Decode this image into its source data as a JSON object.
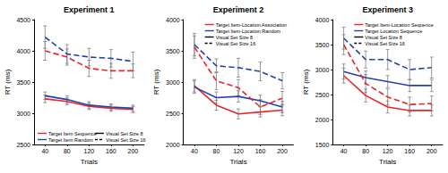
{
  "chart_data": [
    {
      "type": "line",
      "title": "Experiment 1",
      "x_label": "Trials",
      "y_label": "RT (ms)",
      "categories": [
        "40",
        "80",
        "120",
        "160",
        "200"
      ],
      "ylim": [
        2500,
        4500
      ],
      "yticks": [
        2500,
        3000,
        3500,
        4000,
        4500
      ],
      "grid": false,
      "legend": "bottom",
      "series": [
        {
          "name": "Target Item Sequence",
          "group": "Visual Set Size 8",
          "color": "#e8262a",
          "line_style": "solid",
          "values": [
            3230,
            3190,
            3110,
            3080,
            3060
          ],
          "errors": [
            60,
            55,
            50,
            50,
            50
          ]
        },
        {
          "name": "Target Item Random",
          "group": "Visual Set Size 8",
          "color": "#2540b0",
          "line_style": "solid",
          "values": [
            3280,
            3220,
            3130,
            3100,
            3080
          ],
          "errors": [
            60,
            60,
            55,
            50,
            50
          ]
        },
        {
          "name": "Target Item Sequence",
          "group": "Visual Set Size 16",
          "color": "#e8262a",
          "line_style": "dashed",
          "values": [
            4000,
            3900,
            3720,
            3680,
            3680
          ],
          "errors": [
            150,
            130,
            130,
            120,
            110
          ]
        },
        {
          "name": "Target Item Random",
          "group": "Visual Set Size 16",
          "color": "#2540b0",
          "line_style": "dashed",
          "values": [
            4220,
            3950,
            3900,
            3880,
            3830
          ],
          "errors": [
            180,
            150,
            140,
            140,
            150
          ]
        }
      ]
    },
    {
      "type": "line",
      "title": "Experiment 2",
      "x_label": "Trials",
      "y_label": "RT (ms)",
      "categories": [
        "40",
        "80",
        "120",
        "160",
        "200"
      ],
      "ylim": [
        2000,
        4000
      ],
      "yticks": [
        2000,
        2500,
        3000,
        3500,
        4000
      ],
      "grid": false,
      "legend": "upper right",
      "series": [
        {
          "name": "Target Item-Location Association",
          "group": "Visual Set Size 8",
          "color": "#e8262a",
          "line_style": "solid",
          "values": [
            2940,
            2630,
            2490,
            2520,
            2550
          ],
          "errors": [
            100,
            80,
            80,
            80,
            90
          ]
        },
        {
          "name": "Target Item-Location Random",
          "group": "Visual Set Size 8",
          "color": "#2540b0",
          "line_style": "solid",
          "values": [
            2920,
            2750,
            2770,
            2700,
            2600
          ],
          "errors": [
            100,
            90,
            90,
            90,
            90
          ]
        },
        {
          "name": "Target Item-Location Association",
          "group": "Visual Set Size 16",
          "color": "#e8262a",
          "line_style": "dashed",
          "values": [
            3560,
            3020,
            2910,
            2600,
            2740
          ],
          "errors": [
            180,
            140,
            130,
            120,
            110
          ]
        },
        {
          "name": "Target Item-Location Random",
          "group": "Visual Set Size 16",
          "color": "#2540b0",
          "line_style": "dashed",
          "values": [
            3600,
            3260,
            3230,
            3170,
            3020
          ],
          "errors": [
            180,
            110,
            150,
            150,
            130
          ]
        }
      ]
    },
    {
      "type": "line",
      "title": "Experiment 3",
      "x_label": "Trials",
      "y_label": "RT (ms)",
      "categories": [
        "40",
        "80",
        "120",
        "160",
        "200"
      ],
      "ylim": [
        1500,
        4000
      ],
      "yticks": [
        1500,
        2000,
        2500,
        3000,
        3500,
        4000
      ],
      "grid": false,
      "legend": "upper right",
      "series": [
        {
          "name": "Target Item-Location Sequence",
          "group": "Visual Set Size 8",
          "color": "#e8262a",
          "line_style": "solid",
          "values": [
            2880,
            2480,
            2250,
            2180,
            2180
          ],
          "errors": [
            150,
            130,
            120,
            110,
            110
          ]
        },
        {
          "name": "Target Location Sequence",
          "group": "Visual Set Size 8",
          "color": "#2540b0",
          "line_style": "solid",
          "values": [
            2960,
            2840,
            2760,
            2680,
            2680
          ],
          "errors": [
            150,
            130,
            120,
            120,
            120
          ]
        },
        {
          "name": "Target Item-Location Sequence",
          "group": "Visual Set Size 16",
          "color": "#e8262a",
          "line_style": "dashed",
          "values": [
            3500,
            2720,
            2450,
            2300,
            2320
          ],
          "errors": [
            200,
            180,
            160,
            150,
            150
          ]
        },
        {
          "name": "Target Location Sequence",
          "group": "Visual Set Size 16",
          "color": "#2540b0",
          "line_style": "dashed",
          "values": [
            3630,
            3200,
            3200,
            3000,
            3040
          ],
          "errors": [
            220,
            170,
            200,
            200,
            210
          ]
        }
      ]
    }
  ]
}
